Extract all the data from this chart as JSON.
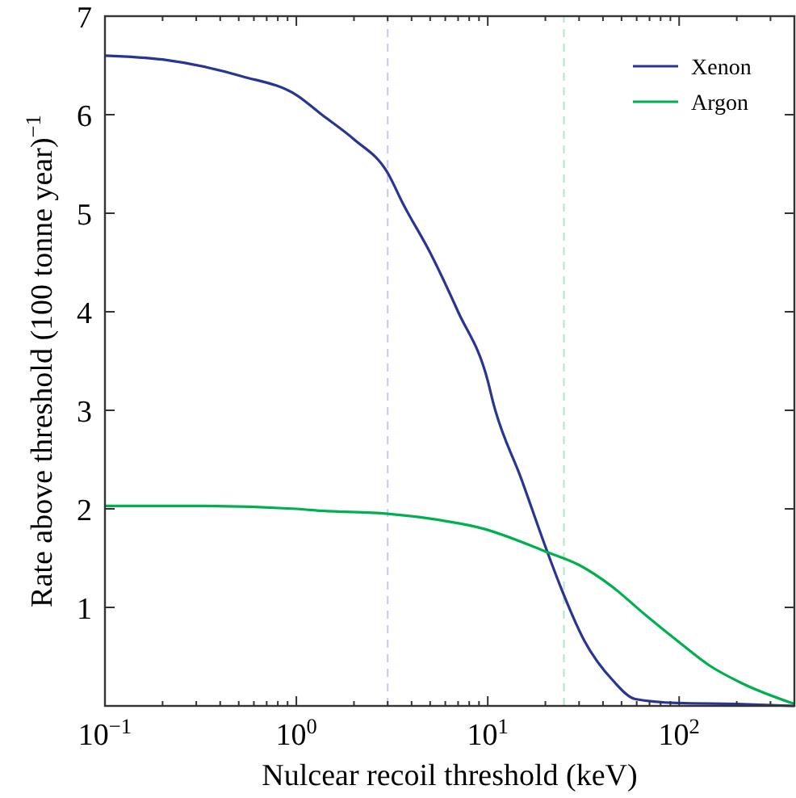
{
  "chart_data": {
    "type": "line",
    "xlabel": "Nulcear recoil threshold (keV)",
    "ylabel": "Rate above threshold (100 tonne year)$^{−1}$",
    "log": "x",
    "xlim": [
      0.1,
      400
    ],
    "xticks": [
      {
        "value": 0.1,
        "label": "10$^{−1}$"
      },
      {
        "value": 1,
        "label": "10$^{0}$"
      },
      {
        "value": 10,
        "label": "10$^{1}$"
      },
      {
        "value": 100,
        "label": "10$^{2}$"
      }
    ],
    "ylim": [
      0,
      7
    ],
    "yticks": [
      1,
      2,
      3,
      4,
      5,
      6,
      7
    ],
    "grid": false,
    "legend": "top right",
    "line_style": "solid",
    "series": [
      {
        "name": "Xenon",
        "color": "#283593",
        "x": [
          0.1,
          0.2,
          0.52,
          1,
          1.36,
          2,
          3,
          3.6,
          5,
          7,
          10,
          10.7,
          15,
          20.5,
          24,
          32,
          45,
          59,
          98,
          200,
          400
        ],
        "values": [
          6.6,
          6.56,
          6.39,
          6.2,
          6.0,
          5.75,
          5.41,
          5.1,
          4.6,
          4.0,
          3.3,
          3.07,
          2.3,
          1.56,
          1.21,
          0.66,
          0.26,
          0.07,
          0.03,
          0.02,
          0.0
        ]
      },
      {
        "name": "Argon",
        "color": "#00b04f",
        "x": [
          0.1,
          0.3,
          1,
          1.36,
          3,
          5,
          9.4,
          20.5,
          30,
          44.7,
          66,
          98,
          144,
          213,
          400
        ],
        "values": [
          2.03,
          2.03,
          2.0,
          1.98,
          1.95,
          1.9,
          1.8,
          1.56,
          1.43,
          1.21,
          0.93,
          0.66,
          0.41,
          0.23,
          0.02
        ]
      }
    ],
    "ref_lines": [
      {
        "axis": "x",
        "value": 3,
        "color": "#c5c8ef",
        "line_style": "dashed"
      },
      {
        "axis": "x",
        "value": 25,
        "color": "#b5e6c4",
        "line_style": "dashed"
      }
    ]
  }
}
